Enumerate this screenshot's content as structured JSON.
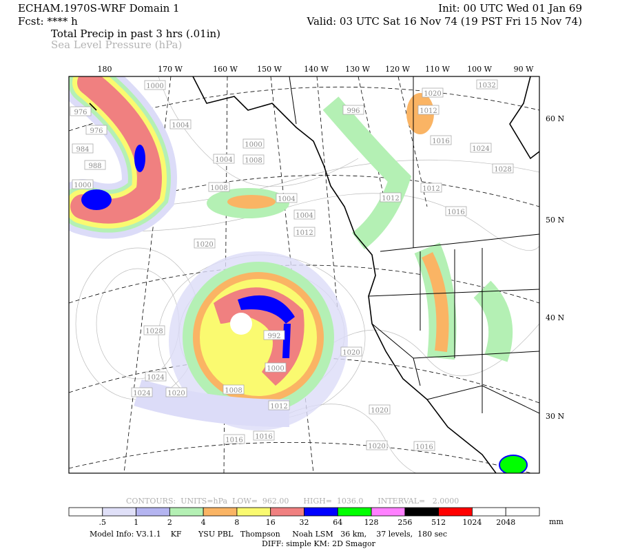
{
  "header": {
    "model": "ECHAM.1970S-WRF Domain 1",
    "forecast": "Fcst: **** h",
    "field_primary": "Total Precip in past 3 hrs (.01in)",
    "field_secondary": "Sea Level Pressure (hPa)",
    "init": "Init: 00 UTC Wed 01 Jan 69",
    "valid": "Valid: 03 UTC Sat 16 Nov 74 (19 PST Fri 15 Nov 74)"
  },
  "longitudes": [
    "180",
    "170 W",
    "160 W",
    "150 W",
    "140 W",
    "130 W",
    "120 W",
    "110 W",
    "100 W",
    "90 W"
  ],
  "latitudes": [
    "60 N",
    "50 N",
    "40 N",
    "30 N"
  ],
  "pressure_labels": [
    "1000",
    "976",
    "976",
    "984",
    "988",
    "1000",
    "1004",
    "1008",
    "1004",
    "1000",
    "1008",
    "1004",
    "1004",
    "1012",
    "1020",
    "1028",
    "1024",
    "1024",
    "1020",
    "992",
    "1000",
    "1008",
    "1012",
    "1016",
    "1016",
    "1020",
    "1020",
    "1020",
    "1016",
    "996",
    "1020",
    "1032",
    "1012",
    "1016",
    "1024",
    "1028",
    "1012",
    "1012",
    "1016"
  ],
  "contours": {
    "info": "CONTOURS:  UNITS=hPa  LOW=  962.00      HIGH=  1036.0      INTERVAL=   2.0000"
  },
  "legend": {
    "colors": [
      "#ffffff",
      "#e0e0f8",
      "#b4b4f0",
      "#b4f0b4",
      "#fab464",
      "#fafa70",
      "#f08080",
      "#0000ff",
      "#00ff00",
      "#ff80ff",
      "#000000",
      "#ff0000",
      "#ffffff",
      "#ffffff"
    ],
    "labels": [
      ".5",
      "1",
      "2",
      "4",
      "8",
      "16",
      "32",
      "64",
      "128",
      "256",
      "512",
      "1024",
      "2048"
    ],
    "unit": "mm"
  },
  "footer": {
    "line1": "Model Info: V3.1.1    KF       YSU PBL   Thompson     Noah LSM   36 km,    37 levels,  180 sec",
    "line2": "DIFF: simple KM: 2D Smagor"
  }
}
